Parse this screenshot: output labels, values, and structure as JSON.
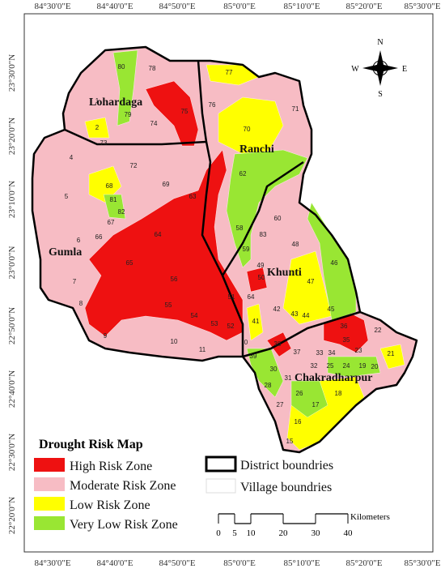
{
  "top_labels": [
    "84°30'0\"E",
    "84°40'0\"E",
    "84°50'0\"E",
    "85°0'0\"E",
    "85°10'0\"E",
    "85°20'0\"E",
    "85°30'0\"E"
  ],
  "bottom_labels": [
    "84°30'0\"E",
    "84°40'0\"E",
    "84°50'0\"E",
    "85°0'0\"E",
    "85°10'0\"E",
    "85°20'0\"E",
    "85°30'0\"E"
  ],
  "left_labels": [
    "23°30'0\"N",
    "23°20'0\"N",
    "23°10'0\"N",
    "23°0'0\"N",
    "22°50'0\"N",
    "22°40'0\"N",
    "22°30'0\"N",
    "22°20'0\"N"
  ],
  "districts": [
    "Lohardaga",
    "Ranchi",
    "Gumla",
    "Khunti",
    "Chakradharpur"
  ],
  "compass": {
    "north": "N",
    "east": "E",
    "south": "S",
    "west": "W"
  },
  "legend": {
    "title": "Drought Risk Map",
    "items": [
      {
        "label": "High Risk Zone",
        "color": "#ee1111"
      },
      {
        "label": "Moderate Risk Zone",
        "color": "#f7bcc4"
      },
      {
        "label": "Low Risk Zone",
        "color": "#ffff00"
      },
      {
        "label": "Very Low Risk  Zone",
        "color": "#99e633"
      }
    ],
    "district_boundary": "District boundries",
    "village_boundary": "Village boundries"
  },
  "scale": {
    "unit": "Kilometers",
    "ticks": [
      0,
      5,
      10,
      20,
      30,
      40
    ]
  },
  "zone_labels": [
    80,
    78,
    77,
    1,
    79,
    75,
    76,
    71,
    74,
    2,
    73,
    70,
    4,
    72,
    62,
    68,
    69,
    81,
    63,
    5,
    82,
    60,
    67,
    66,
    64,
    48,
    83,
    58,
    6,
    59,
    65,
    46,
    49,
    50,
    47,
    7,
    56,
    51,
    64,
    42,
    43,
    44,
    45,
    8,
    55,
    54,
    53,
    52,
    41,
    36,
    35,
    22,
    23,
    9,
    10,
    11,
    0,
    38,
    37,
    33,
    34,
    39,
    30,
    32,
    25,
    24,
    19,
    20,
    21,
    31,
    28,
    18,
    26,
    17,
    27,
    16,
    15
  ]
}
